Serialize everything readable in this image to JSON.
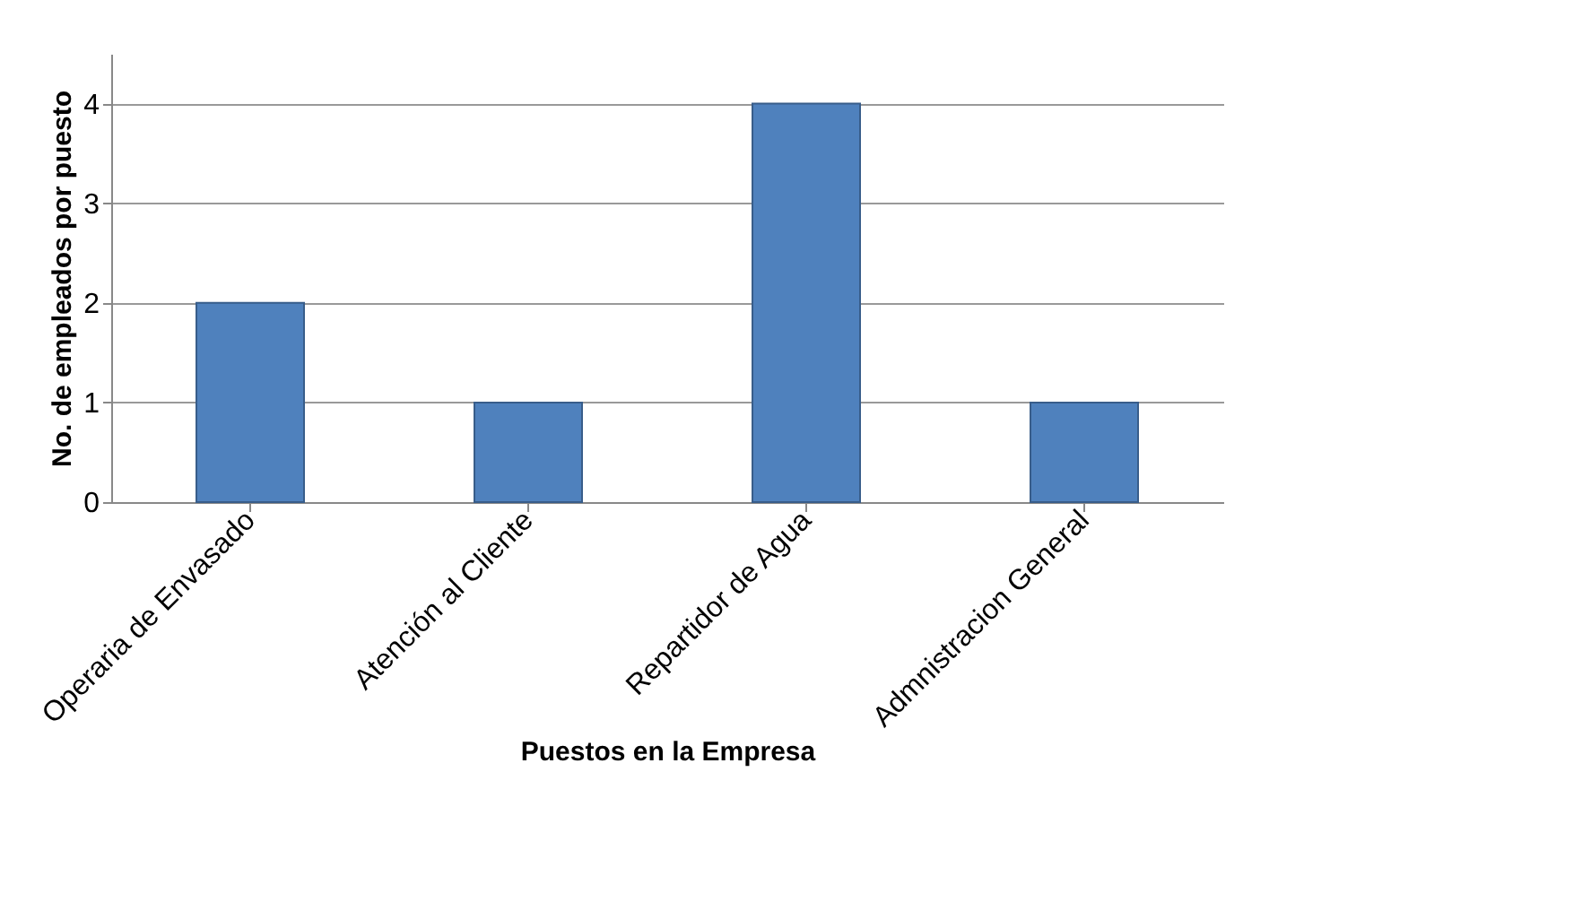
{
  "chart_data": {
    "type": "bar",
    "xlabel": "Puestos en la Empresa",
    "ylabel": "No. de empleados por puesto",
    "categories": [
      "Operaria de Envasado",
      "Atención al Cliente",
      "Repartidor de Agua",
      "Admnistracion General"
    ],
    "values": [
      2,
      1,
      4,
      1
    ],
    "color": "#4f81bd",
    "ylim": [
      0,
      4.5
    ],
    "yticks": [
      0,
      1,
      2,
      3,
      4
    ],
    "grid": "y",
    "legend": false
  }
}
